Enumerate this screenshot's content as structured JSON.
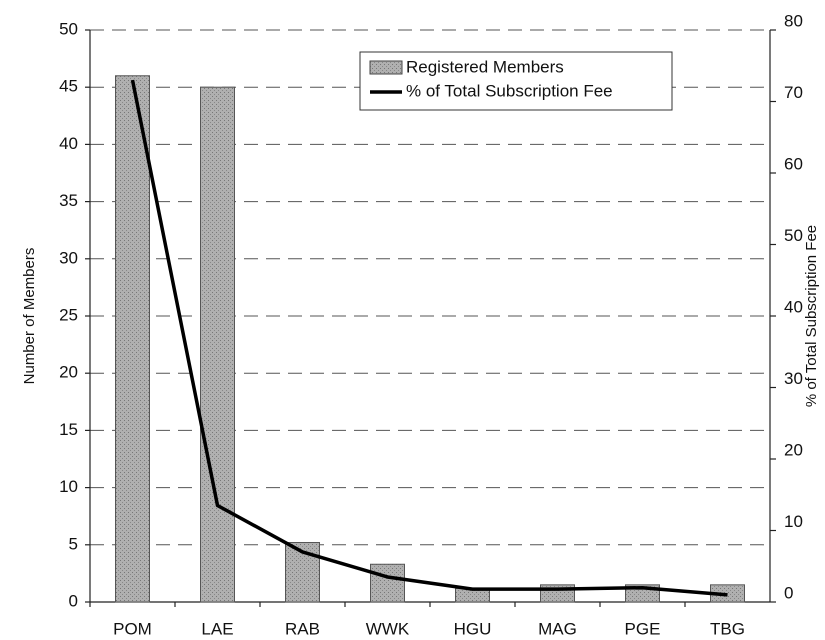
{
  "chart_data": {
    "type": "bar_line",
    "categories": [
      "POM",
      "LAE",
      "RAB",
      "WWK",
      "HGU",
      "MAG",
      "PGE",
      "TBG"
    ],
    "series": [
      {
        "name": "Registered Members",
        "type": "bar",
        "color": "#a8a8a8",
        "values": [
          46,
          45,
          5.2,
          3.3,
          1.2,
          1.5,
          1.5,
          1.5
        ]
      },
      {
        "name": "% of Total Subscription Fee",
        "type": "line",
        "axis": "y2",
        "color": "#000000",
        "values": [
          73,
          13.5,
          7,
          3.5,
          1.8,
          1.8,
          2,
          1
        ]
      }
    ],
    "ylabel": "Number of Members",
    "y2label": "% of Total Subscription Fee",
    "ylim": [
      0,
      50
    ],
    "yticks": [
      0,
      5,
      10,
      15,
      20,
      25,
      30,
      35,
      40,
      45,
      50
    ],
    "y2lim": [
      0,
      80
    ],
    "y2ticks": [
      0,
      10,
      20,
      30,
      40,
      50,
      60,
      70,
      80
    ],
    "grid": true,
    "legend": "top-right"
  }
}
